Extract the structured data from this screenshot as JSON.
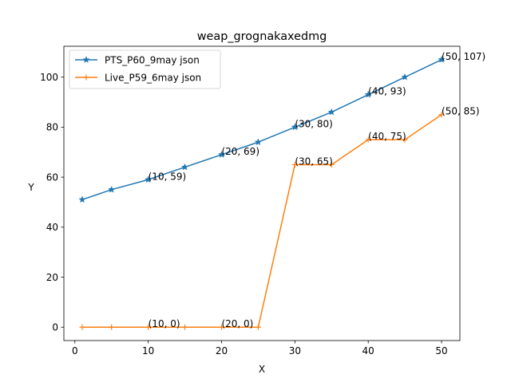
{
  "chart_data": {
    "type": "line",
    "title": "weap_grognakaxedmg",
    "xlabel": "X",
    "ylabel": "Y",
    "xlim": [
      -1.5,
      52.5
    ],
    "ylim": [
      -5.35,
      112.35
    ],
    "xticks": [
      0,
      10,
      20,
      30,
      40,
      50
    ],
    "yticks": [
      0,
      20,
      40,
      60,
      80,
      100
    ],
    "grid": false,
    "legend_position": "top-left",
    "series": [
      {
        "name": "PTS_P60_9may json",
        "color": "#1f77b4",
        "marker": "star",
        "x": [
          1,
          5,
          10,
          15,
          20,
          25,
          30,
          35,
          40,
          45,
          50
        ],
        "y": [
          51,
          55,
          59,
          64,
          69,
          74,
          80,
          86,
          93,
          100,
          107
        ],
        "annotations": [
          {
            "x": 10,
            "y": 59,
            "text": "(10, 59)"
          },
          {
            "x": 20,
            "y": 69,
            "text": "(20, 69)"
          },
          {
            "x": 30,
            "y": 80,
            "text": "(30, 80)"
          },
          {
            "x": 40,
            "y": 93,
            "text": "(40, 93)"
          },
          {
            "x": 50,
            "y": 107,
            "text": "(50, 107)"
          }
        ]
      },
      {
        "name": "Live_P59_6may json",
        "color": "#ff7f0e",
        "marker": "plus",
        "x": [
          1,
          5,
          10,
          15,
          20,
          25,
          30,
          35,
          40,
          45,
          50
        ],
        "y": [
          0,
          0,
          0,
          0,
          0,
          0,
          65,
          65,
          75,
          75,
          85
        ],
        "annotations": [
          {
            "x": 10,
            "y": 0,
            "text": "(10, 0)"
          },
          {
            "x": 20,
            "y": 0,
            "text": "(20, 0)"
          },
          {
            "x": 30,
            "y": 65,
            "text": "(30, 65)"
          },
          {
            "x": 40,
            "y": 75,
            "text": "(40, 75)"
          },
          {
            "x": 50,
            "y": 85,
            "text": "(50, 85)"
          }
        ]
      }
    ]
  }
}
